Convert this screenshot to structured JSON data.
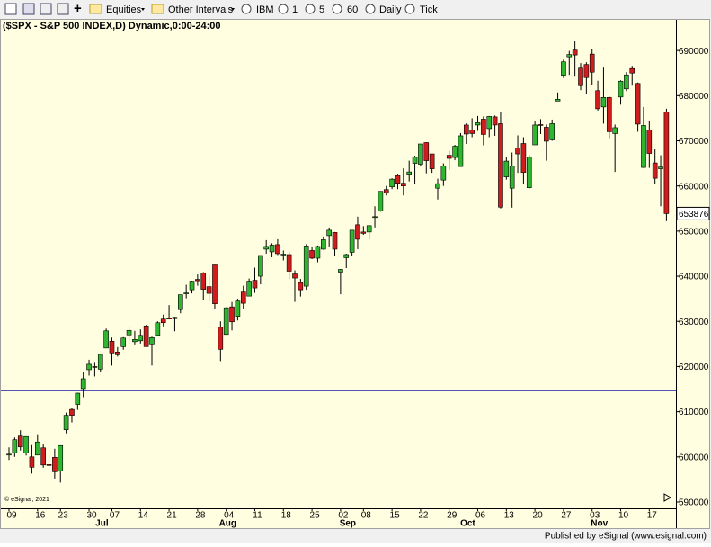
{
  "toolbar": [
    "Equities",
    "Other Intervals",
    "IBM",
    "1",
    "5",
    "60",
    "Daily",
    "Tick"
  ],
  "watermark": "© eSignal, 2021",
  "footer": "Published by eSignal (www.esignal.com)",
  "chart_data": {
    "type": "candlestick",
    "title": "($SPX - S&P 500 INDEX,D) Dynamic,0:00-24:00",
    "categories": [
      "09",
      null,
      null,
      null,
      null,
      "16",
      null,
      null,
      null,
      "23",
      null,
      null,
      null,
      null,
      "30",
      null,
      null,
      null,
      "07",
      null,
      null,
      null,
      null,
      "14",
      null,
      null,
      null,
      null,
      "21",
      null,
      null,
      null,
      null,
      "28",
      null,
      null,
      null,
      null,
      "04",
      null,
      null,
      null,
      null,
      "11",
      null,
      null,
      null,
      null,
      "18",
      null,
      null,
      null,
      null,
      "25",
      null,
      null,
      null,
      null,
      "02",
      null,
      null,
      null,
      "08",
      null,
      null,
      null,
      null,
      "15",
      null,
      null,
      null,
      null,
      "22",
      null,
      null,
      null,
      null,
      "29",
      null,
      null,
      null,
      null,
      "06",
      null,
      null,
      null,
      null,
      "13",
      null,
      null,
      null,
      null,
      "20",
      null,
      null,
      null,
      null,
      "27",
      null,
      null,
      null,
      null,
      "03",
      null,
      null,
      null,
      null,
      "10",
      null,
      null,
      null,
      null,
      "17",
      null,
      null,
      null
    ],
    "month_categories": [
      null,
      null,
      null,
      null,
      null,
      null,
      null,
      null,
      null,
      null,
      null,
      null,
      null,
      null,
      null,
      "Jul",
      null,
      null,
      null,
      null,
      null,
      null,
      null,
      null,
      null,
      null,
      null,
      null,
      null,
      null,
      null,
      null,
      null,
      null,
      null,
      null,
      null,
      "Aug",
      null,
      null,
      null,
      null,
      null,
      null,
      null,
      null,
      null,
      null,
      null,
      null,
      null,
      null,
      null,
      null,
      null,
      null,
      null,
      null,
      "Sep",
      null,
      null,
      null,
      null,
      null,
      null,
      null,
      null,
      null,
      null,
      null,
      null,
      null,
      null,
      null,
      null,
      null,
      null,
      null,
      null,
      "Oct",
      null,
      null,
      null,
      null,
      null,
      null,
      null,
      null,
      null,
      null,
      null,
      null,
      null,
      null,
      null,
      null,
      null,
      null,
      null,
      null,
      null,
      null,
      "Nov",
      null,
      null,
      null,
      null,
      null,
      null,
      null,
      null,
      null,
      null,
      null,
      null,
      null
    ],
    "ohlc": [
      [
        600400,
        602100,
        599300,
        600600
      ],
      [
        600900,
        604300,
        600000,
        603800
      ],
      [
        604600,
        605900,
        601400,
        602200
      ],
      [
        600900,
        604500,
        600300,
        604500
      ],
      [
        600000,
        602600,
        596300,
        597700
      ],
      [
        600400,
        605000,
        600400,
        603300
      ],
      [
        602000,
        602800,
        597600,
        598200
      ],
      [
        598300,
        601800,
        597000,
        598100
      ],
      [
        599900,
        601800,
        595200,
        596700
      ],
      [
        596900,
        602500,
        594300,
        602500
      ],
      [
        606000,
        609800,
        605200,
        609200
      ],
      [
        610500,
        610800,
        607600,
        609200
      ],
      [
        611600,
        614200,
        610400,
        614100
      ],
      [
        615100,
        618700,
        613200,
        617300
      ],
      [
        619300,
        621500,
        618000,
        620500
      ],
      [
        620000,
        621000,
        617800,
        619800
      ],
      [
        619400,
        622700,
        618700,
        622700
      ],
      [
        624100,
        628400,
        624100,
        627900
      ],
      [
        625600,
        626400,
        620200,
        623000
      ],
      [
        623200,
        624300,
        622200,
        622600
      ],
      [
        624400,
        626500,
        623700,
        626300
      ],
      [
        627000,
        629000,
        625100,
        628000
      ],
      [
        625500,
        627900,
        624900,
        626000
      ],
      [
        625700,
        628200,
        625100,
        626900
      ],
      [
        629000,
        629200,
        624400,
        624400
      ],
      [
        625000,
        626600,
        620200,
        626400
      ],
      [
        626900,
        630000,
        626800,
        629700
      ],
      [
        630500,
        631500,
        628900,
        629700
      ],
      [
        630700,
        633600,
        630500,
        630600
      ],
      [
        630600,
        631000,
        627800,
        630900
      ],
      [
        632600,
        635900,
        631800,
        635900
      ],
      [
        636200,
        638100,
        635100,
        636300
      ],
      [
        637000,
        639000,
        636200,
        638900
      ],
      [
        639300,
        640400,
        637900,
        639000
      ],
      [
        640700,
        640900,
        634700,
        637100
      ],
      [
        637700,
        640200,
        634400,
        636200
      ],
      [
        642700,
        642700,
        632700,
        633900
      ],
      [
        628700,
        630000,
        621200,
        623800
      ],
      [
        627100,
        633100,
        627100,
        633000
      ],
      [
        633200,
        634300,
        628000,
        629900
      ],
      [
        631100,
        635000,
        630200,
        634500
      ],
      [
        636500,
        637900,
        632700,
        634000
      ],
      [
        635600,
        639500,
        635600,
        638900
      ],
      [
        639100,
        641900,
        636300,
        637400
      ],
      [
        640000,
        644600,
        638200,
        644600
      ],
      [
        646000,
        648000,
        645000,
        646600
      ],
      [
        645400,
        647300,
        644200,
        646900
      ],
      [
        647000,
        648200,
        644700,
        645000
      ],
      [
        644700,
        645700,
        643500,
        644900
      ],
      [
        644800,
        645500,
        639300,
        641100
      ],
      [
        640500,
        641300,
        634300,
        639600
      ],
      [
        638600,
        639400,
        635500,
        637000
      ],
      [
        637800,
        647100,
        637000,
        646700
      ],
      [
        645700,
        646600,
        643800,
        644000
      ],
      [
        644000,
        646800,
        643100,
        646600
      ],
      [
        646000,
        648800,
        645900,
        648100
      ],
      [
        649000,
        650800,
        646600,
        650200
      ],
      [
        649700,
        649800,
        644400,
        646000
      ],
      [
        640900,
        641600,
        636000,
        641500
      ],
      [
        644100,
        645000,
        641800,
        644800
      ],
      [
        645300,
        650200,
        644500,
        650200
      ],
      [
        651400,
        653200,
        646000,
        648200
      ],
      [
        649800,
        651100,
        649200,
        649500
      ],
      [
        649800,
        651400,
        648200,
        651200
      ],
      [
        653000,
        655500,
        650800,
        653200
      ],
      [
        654500,
        658800,
        654300,
        658800
      ],
      [
        659200,
        660000,
        657900,
        658400
      ],
      [
        659800,
        661700,
        659300,
        661500
      ],
      [
        662300,
        662700,
        659300,
        660600
      ],
      [
        660600,
        663900,
        657900,
        660000
      ],
      [
        662600,
        665600,
        661000,
        663100
      ],
      [
        665000,
        666700,
        660400,
        666400
      ],
      [
        664800,
        669300,
        664300,
        669300
      ],
      [
        669600,
        669700,
        662800,
        665600
      ],
      [
        667100,
        667100,
        662900,
        663800
      ],
      [
        659500,
        661600,
        657000,
        660500
      ],
      [
        661300,
        665000,
        660000,
        664400
      ],
      [
        666800,
        667800,
        663600,
        666100
      ],
      [
        666300,
        669100,
        665700,
        668800
      ],
      [
        664300,
        671700,
        664300,
        671100
      ],
      [
        673500,
        673900,
        669300,
        671500
      ],
      [
        672400,
        675000,
        670800,
        671600
      ],
      [
        673500,
        675500,
        672200,
        674000
      ],
      [
        674800,
        675400,
        669000,
        671400
      ],
      [
        672700,
        675500,
        670800,
        675400
      ],
      [
        675300,
        675600,
        671100,
        673500
      ],
      [
        673800,
        676400,
        655000,
        655300
      ],
      [
        662000,
        666500,
        661400,
        665500
      ],
      [
        659500,
        667400,
        655200,
        664400
      ],
      [
        668400,
        671200,
        662900,
        667100
      ],
      [
        669400,
        670800,
        660400,
        663000
      ],
      [
        659600,
        666800,
        659400,
        666400
      ],
      [
        669100,
        674400,
        669100,
        673500
      ],
      [
        673600,
        674800,
        671500,
        673500
      ],
      [
        673000,
        673600,
        665600,
        669900
      ],
      [
        670200,
        674700,
        670000,
        673800
      ],
      [
        678800,
        680700,
        678800,
        679200
      ],
      [
        684500,
        688000,
        683900,
        687500
      ],
      [
        688600,
        689900,
        684600,
        689100
      ],
      [
        690100,
        692000,
        684200,
        689000
      ],
      [
        686100,
        687200,
        681200,
        682200
      ],
      [
        686900,
        687400,
        680300,
        684000
      ],
      [
        689200,
        690300,
        682400,
        685200
      ],
      [
        681100,
        683300,
        676700,
        677100
      ],
      [
        677500,
        686200,
        673800,
        679600
      ],
      [
        679600,
        679800,
        670600,
        672000
      ],
      [
        671600,
        673600,
        663100,
        672900
      ],
      [
        679700,
        683400,
        678000,
        683200
      ],
      [
        681500,
        685200,
        681000,
        684600
      ],
      [
        686000,
        686600,
        682200,
        685000
      ],
      [
        682700,
        682900,
        672000,
        673700
      ],
      [
        664100,
        677500,
        664000,
        673400
      ],
      [
        672400,
        674500,
        664000,
        667200
      ],
      [
        665100,
        668100,
        660400,
        661700
      ],
      [
        663800,
        666800,
        655500,
        664200
      ],
      [
        676400,
        677100,
        652200,
        653876
      ]
    ],
    "up_color": "#2fb52f",
    "down_color": "#d01c1c",
    "ylim": [
      588600,
      696800
    ],
    "yticks": [
      590000,
      600000,
      610000,
      620000,
      630000,
      640000,
      650000,
      660000,
      670000,
      680000,
      690000
    ],
    "hline": {
      "value": 614700,
      "color": "#1c1ca8"
    },
    "grid": false
  }
}
